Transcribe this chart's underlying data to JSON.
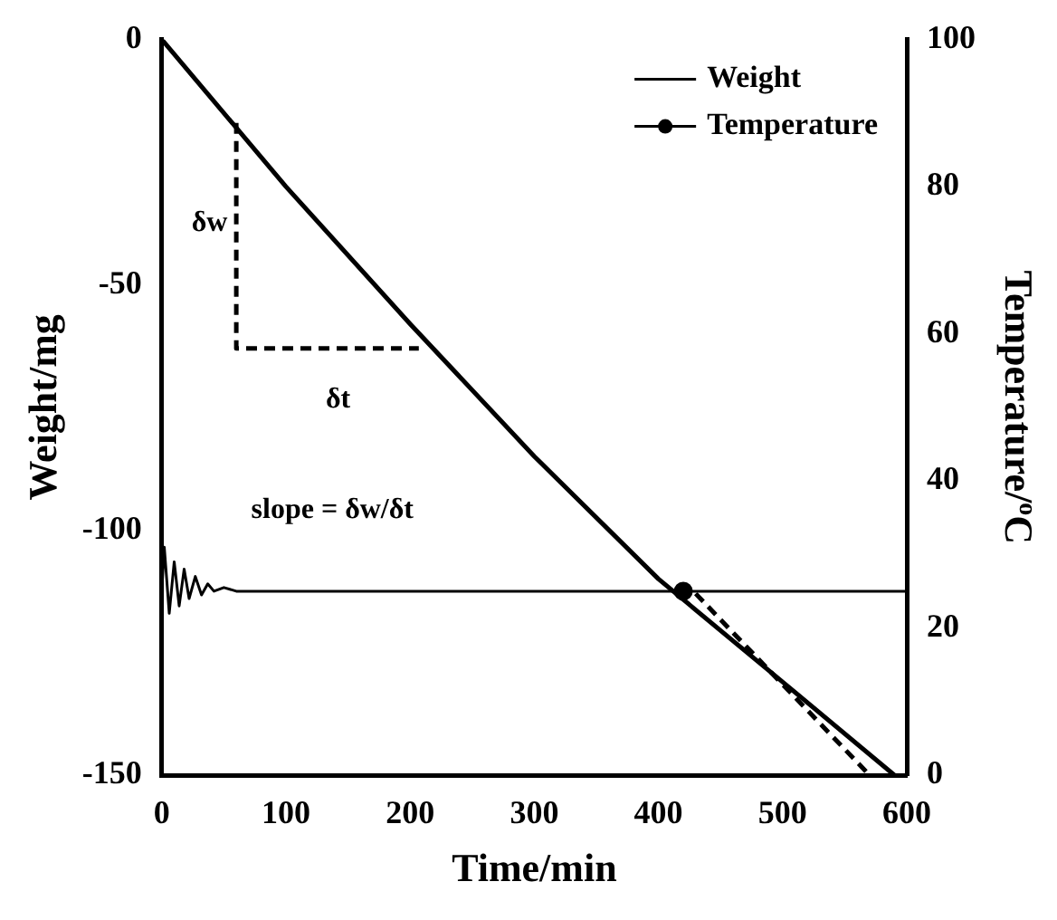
{
  "chart_data": {
    "type": "line",
    "xlabel": "Time/min",
    "ylabel": "Weight/mg",
    "y2label": "Temperature/$^{o}$C",
    "xlim": [
      0,
      600
    ],
    "xticks": [
      0,
      100,
      200,
      300,
      400,
      500,
      600
    ],
    "ylim": [
      -150,
      0
    ],
    "yticks": [
      -150,
      -100,
      -50,
      0
    ],
    "y2lim": [
      0,
      100
    ],
    "y2ticks": [
      0,
      20,
      40,
      60,
      80,
      100
    ],
    "grid": false,
    "legend": "top right",
    "marker": "none",
    "series": [
      {
        "name": "Weight",
        "color": "#000000",
        "x": [
          0,
          100,
          200,
          300,
          400,
          500,
          590
        ],
        "values": [
          0,
          -30,
          -58,
          -85,
          -110,
          -131,
          -150
        ],
        "line_style": "solid"
      },
      {
        "name": "Temperature",
        "color": "#000000",
        "axis": "y2",
        "x": [
          0,
          2,
          6,
          10,
          14,
          18,
          22,
          27,
          32,
          37,
          42,
          50,
          60,
          600
        ],
        "values": [
          25,
          31,
          22,
          29,
          23,
          28,
          24,
          27,
          24.5,
          26,
          25,
          25.5,
          25,
          25
        ],
        "line_style": "solid"
      },
      {
        "type": "scatter",
        "color": "#000000",
        "axis": "y2",
        "x": [
          420
        ],
        "values": [
          25
        ],
        "marker": "circle"
      },
      {
        "color": "#000000",
        "x": [
          430,
          570
        ],
        "values": [
          -113,
          -150
        ],
        "line_style": "dashed"
      },
      {
        "color": "#000000",
        "x": [
          60,
          60,
          207
        ],
        "values": [
          -17,
          -63,
          -63
        ],
        "line_style": "dashed"
      }
    ],
    "annotations": [
      "δw",
      "δt",
      "slope = δw/δt"
    ]
  }
}
